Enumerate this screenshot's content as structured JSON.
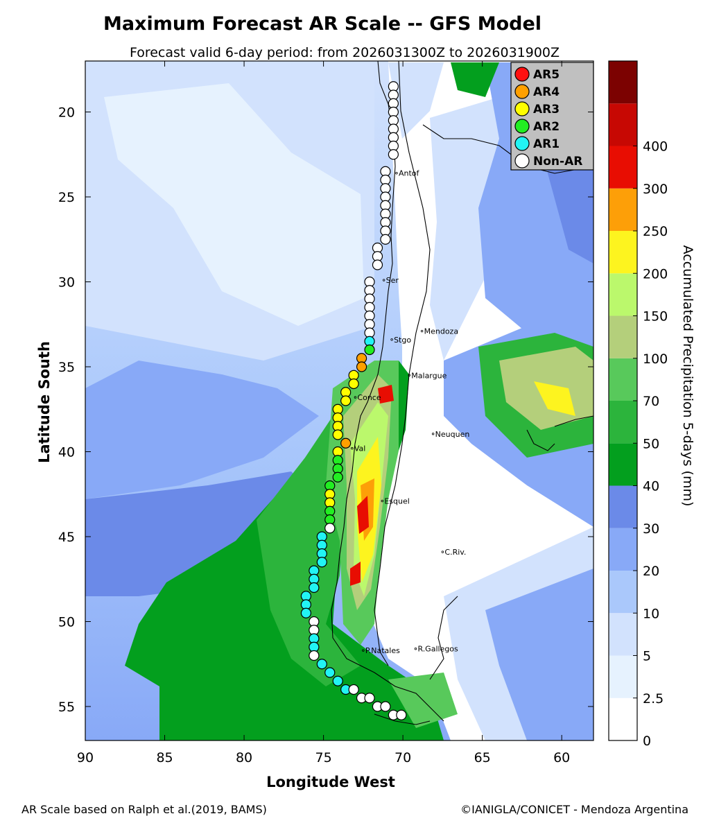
{
  "title": "Maximum Forecast AR Scale -- GFS Model",
  "subtitle": "Forecast valid 6-day period: from 2026031300Z to 2026031900Z",
  "xlabel": "Longitude West",
  "ylabel": "Latitude South",
  "x_ticks": [
    "90",
    "85",
    "80",
    "75",
    "70",
    "65",
    "60"
  ],
  "y_ticks": [
    "20",
    "25",
    "30",
    "35",
    "40",
    "45",
    "50",
    "55"
  ],
  "extent": {
    "lon_west_min": 58,
    "lon_west_max": 90,
    "lat_south_min": 17,
    "lat_south_max": 57
  },
  "colorbar": {
    "label": "Accumulated Precipitation 5-days (mm)",
    "levels": [
      "0",
      "2.5",
      "5",
      "10",
      "20",
      "30",
      "40",
      "50",
      "70",
      "100",
      "150",
      "200",
      "250",
      "300",
      "400"
    ],
    "colors": [
      "#ffffff",
      "#e6f2fe",
      "#d2e2fd",
      "#aac8fb",
      "#88a9f7",
      "#6b8ae8",
      "#039f1e",
      "#2cb43c",
      "#58c95b",
      "#b4cf7b",
      "#bbf86c",
      "#fdf41f",
      "#fd9f08",
      "#e80d02",
      "#c70803",
      "#7c0201",
      "#000000"
    ]
  },
  "legend": {
    "items": [
      {
        "label": "AR5",
        "color": "#ff1010"
      },
      {
        "label": "AR4",
        "color": "#ffa000"
      },
      {
        "label": "AR3",
        "color": "#ffff00"
      },
      {
        "label": "AR2",
        "color": "#22ee22"
      },
      {
        "label": "AR1",
        "color": "#22f4f4"
      },
      {
        "label": "Non-AR",
        "color": "#ffffff"
      }
    ]
  },
  "cities": [
    {
      "name": "Antof",
      "lon": 70.4,
      "lat": 23.6
    },
    {
      "name": "Ser",
      "lon": 71.2,
      "lat": 29.9
    },
    {
      "name": "Mendoza",
      "lon": 68.8,
      "lat": 32.9
    },
    {
      "name": "Stgo",
      "lon": 70.7,
      "lat": 33.4
    },
    {
      "name": "Malargue",
      "lon": 69.6,
      "lat": 35.5
    },
    {
      "name": "Conce",
      "lon": 73.0,
      "lat": 36.8
    },
    {
      "name": "Val",
      "lon": 73.2,
      "lat": 39.8
    },
    {
      "name": "Neuquen",
      "lon": 68.1,
      "lat": 38.95
    },
    {
      "name": "Esquel",
      "lon": 71.3,
      "lat": 42.9
    },
    {
      "name": "C.Riv.",
      "lon": 67.5,
      "lat": 45.9
    },
    {
      "name": "P.Natales",
      "lon": 72.5,
      "lat": 51.7
    },
    {
      "name": "R.Gallegos",
      "lon": 69.2,
      "lat": 51.6
    }
  ],
  "ar_points": [
    {
      "lon": 70.6,
      "lat": 18.5,
      "cat": 0
    },
    {
      "lon": 70.6,
      "lat": 19.0,
      "cat": 0
    },
    {
      "lon": 70.6,
      "lat": 19.5,
      "cat": 0
    },
    {
      "lon": 70.6,
      "lat": 20.0,
      "cat": 0
    },
    {
      "lon": 70.6,
      "lat": 20.5,
      "cat": 0
    },
    {
      "lon": 70.6,
      "lat": 21.0,
      "cat": 0
    },
    {
      "lon": 70.6,
      "lat": 21.5,
      "cat": 0
    },
    {
      "lon": 70.6,
      "lat": 22.0,
      "cat": 0
    },
    {
      "lon": 70.6,
      "lat": 22.5,
      "cat": 0
    },
    {
      "lon": 71.1,
      "lat": 23.5,
      "cat": 0
    },
    {
      "lon": 71.1,
      "lat": 24.0,
      "cat": 0
    },
    {
      "lon": 71.1,
      "lat": 24.5,
      "cat": 0
    },
    {
      "lon": 71.1,
      "lat": 25.0,
      "cat": 0
    },
    {
      "lon": 71.1,
      "lat": 25.5,
      "cat": 0
    },
    {
      "lon": 71.1,
      "lat": 26.0,
      "cat": 0
    },
    {
      "lon": 71.1,
      "lat": 26.5,
      "cat": 0
    },
    {
      "lon": 71.1,
      "lat": 27.0,
      "cat": 0
    },
    {
      "lon": 71.1,
      "lat": 27.5,
      "cat": 0
    },
    {
      "lon": 71.6,
      "lat": 28.0,
      "cat": 0
    },
    {
      "lon": 71.6,
      "lat": 28.5,
      "cat": 0
    },
    {
      "lon": 71.6,
      "lat": 29.0,
      "cat": 0
    },
    {
      "lon": 72.1,
      "lat": 30.0,
      "cat": 0
    },
    {
      "lon": 72.1,
      "lat": 30.5,
      "cat": 0
    },
    {
      "lon": 72.1,
      "lat": 31.0,
      "cat": 0
    },
    {
      "lon": 72.1,
      "lat": 31.5,
      "cat": 0
    },
    {
      "lon": 72.1,
      "lat": 32.0,
      "cat": 0
    },
    {
      "lon": 72.1,
      "lat": 32.5,
      "cat": 0
    },
    {
      "lon": 72.1,
      "lat": 33.0,
      "cat": 0
    },
    {
      "lon": 72.1,
      "lat": 33.5,
      "cat": 1
    },
    {
      "lon": 72.1,
      "lat": 34.0,
      "cat": 2
    },
    {
      "lon": 72.6,
      "lat": 34.5,
      "cat": 4
    },
    {
      "lon": 72.6,
      "lat": 35.0,
      "cat": 4
    },
    {
      "lon": 73.1,
      "lat": 35.5,
      "cat": 3
    },
    {
      "lon": 73.1,
      "lat": 36.0,
      "cat": 3
    },
    {
      "lon": 73.6,
      "lat": 36.5,
      "cat": 3
    },
    {
      "lon": 73.6,
      "lat": 37.0,
      "cat": 3
    },
    {
      "lon": 74.1,
      "lat": 37.5,
      "cat": 3
    },
    {
      "lon": 74.1,
      "lat": 38.0,
      "cat": 3
    },
    {
      "lon": 74.1,
      "lat": 38.5,
      "cat": 3
    },
    {
      "lon": 74.1,
      "lat": 39.0,
      "cat": 3
    },
    {
      "lon": 73.6,
      "lat": 39.5,
      "cat": 4
    },
    {
      "lon": 74.1,
      "lat": 40.0,
      "cat": 3
    },
    {
      "lon": 74.1,
      "lat": 40.5,
      "cat": 2
    },
    {
      "lon": 74.1,
      "lat": 41.0,
      "cat": 2
    },
    {
      "lon": 74.1,
      "lat": 41.5,
      "cat": 2
    },
    {
      "lon": 74.6,
      "lat": 42.0,
      "cat": 2
    },
    {
      "lon": 74.6,
      "lat": 42.5,
      "cat": 3
    },
    {
      "lon": 74.6,
      "lat": 43.0,
      "cat": 3
    },
    {
      "lon": 74.6,
      "lat": 43.5,
      "cat": 2
    },
    {
      "lon": 74.6,
      "lat": 44.0,
      "cat": 2
    },
    {
      "lon": 74.6,
      "lat": 44.5,
      "cat": 0
    },
    {
      "lon": 75.1,
      "lat": 45.0,
      "cat": 1
    },
    {
      "lon": 75.1,
      "lat": 45.5,
      "cat": 1
    },
    {
      "lon": 75.1,
      "lat": 46.0,
      "cat": 1
    },
    {
      "lon": 75.1,
      "lat": 46.5,
      "cat": 1
    },
    {
      "lon": 75.6,
      "lat": 47.0,
      "cat": 1
    },
    {
      "lon": 75.6,
      "lat": 47.5,
      "cat": 1
    },
    {
      "lon": 75.6,
      "lat": 48.0,
      "cat": 1
    },
    {
      "lon": 76.1,
      "lat": 48.5,
      "cat": 1
    },
    {
      "lon": 76.1,
      "lat": 49.0,
      "cat": 1
    },
    {
      "lon": 76.1,
      "lat": 49.5,
      "cat": 1
    },
    {
      "lon": 75.6,
      "lat": 50.0,
      "cat": 0
    },
    {
      "lon": 75.6,
      "lat": 50.5,
      "cat": 0
    },
    {
      "lon": 75.6,
      "lat": 51.0,
      "cat": 1
    },
    {
      "lon": 75.6,
      "lat": 51.5,
      "cat": 1
    },
    {
      "lon": 75.6,
      "lat": 52.0,
      "cat": 0
    },
    {
      "lon": 75.1,
      "lat": 52.5,
      "cat": 1
    },
    {
      "lon": 74.6,
      "lat": 53.0,
      "cat": 1
    },
    {
      "lon": 74.1,
      "lat": 53.5,
      "cat": 1
    },
    {
      "lon": 73.6,
      "lat": 54.0,
      "cat": 1
    },
    {
      "lon": 73.1,
      "lat": 54.0,
      "cat": 0
    },
    {
      "lon": 72.6,
      "lat": 54.5,
      "cat": 0
    },
    {
      "lon": 72.1,
      "lat": 54.5,
      "cat": 0
    },
    {
      "lon": 71.6,
      "lat": 55.0,
      "cat": 0
    },
    {
      "lon": 71.1,
      "lat": 55.0,
      "cat": 0
    },
    {
      "lon": 70.6,
      "lat": 55.5,
      "cat": 0
    },
    {
      "lon": 70.1,
      "lat": 55.5,
      "cat": 0
    }
  ],
  "footer_left": "AR Scale based on Ralph et al.(2019, BAMS)",
  "footer_right": "©IANIGLA/CONICET - Mendoza Argentina"
}
